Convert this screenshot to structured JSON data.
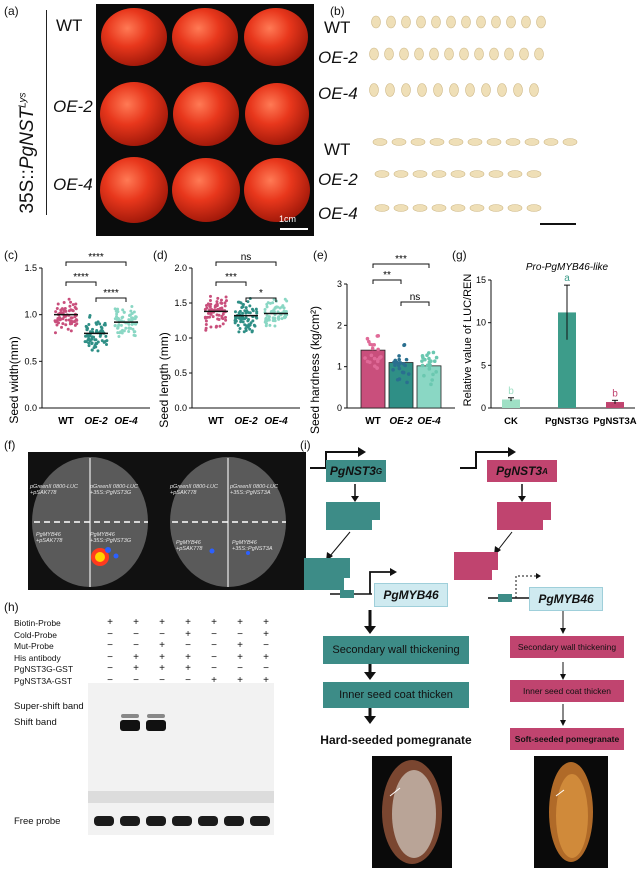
{
  "panel_a": {
    "label": "(a)",
    "construct_prefix": "35S::",
    "construct_gene": "PgNST",
    "construct_sup": "Lys",
    "rows": [
      "WT",
      "OE-2",
      "OE-4"
    ],
    "scale": "1cm"
  },
  "panel_b": {
    "label": "(b)",
    "rows": [
      "WT",
      "OE-2",
      "OE-4",
      "WT",
      "OE-2",
      "OE-4"
    ]
  },
  "panel_c": {
    "label": "(c)",
    "ylabel": "Seed width(mm)",
    "yticks": [
      "0.0",
      "0.5",
      "1.0",
      "1.5"
    ],
    "xticks": [
      "WT",
      "OE-2",
      "OE-4"
    ],
    "sig": [
      "****",
      "****",
      "****"
    ]
  },
  "panel_d": {
    "label": "(d)",
    "ylabel": "Seed length (mm)",
    "yticks": [
      "0.0",
      "0.5",
      "1.0",
      "1.5",
      "2.0"
    ],
    "xticks": [
      "WT",
      "OE-2",
      "OE-4"
    ],
    "sig": [
      "ns",
      "***",
      "*"
    ]
  },
  "panel_e": {
    "label": "(e)",
    "ylabel": "Seed hardness (kg/cm²)",
    "yticks": [
      "0",
      "1",
      "2",
      "3"
    ],
    "xticks": [
      "WT",
      "OE-2",
      "OE-4"
    ],
    "sig": [
      "***",
      "**",
      "ns"
    ]
  },
  "panel_g": {
    "label": "(g)",
    "title": "Pro-PgMYB46-like",
    "ylabel": "Relative value of LUC/REN",
    "yticks": [
      "0",
      "5",
      "10",
      "15"
    ],
    "xticks": [
      "CK",
      "PgNST3G",
      "PgNST3A"
    ],
    "letters": [
      "b",
      "a",
      "b"
    ]
  },
  "panel_f": {
    "label": "(f)",
    "left_leaf": {
      "tl": "pGreenII 0800-LUC\n+pSAK778",
      "tr": "pGreenII 0800-LUC\n+35S::PgNST3G",
      "bl": "PgMYB46\n+pSAK778",
      "br": "PgMYB46\n+35S::PgNST3G"
    },
    "right_leaf": {
      "tl": "pGreenII 0800-LUC\n+pSAK778",
      "tr": "pGreenII 0800-LUC\n+35S::PgNST3A",
      "bl": "PgMYB46\n+pSAK778",
      "br": "PgMYB46\n+35S::PgNST3A"
    }
  },
  "panel_h": {
    "label": "(h)",
    "rows": [
      {
        "name": "Biotin-Probe",
        "signs": [
          "+",
          "+",
          "+",
          "+",
          "+",
          "+",
          "+"
        ]
      },
      {
        "name": "Cold-Probe",
        "signs": [
          "−",
          "−",
          "−",
          "+",
          "−",
          "−",
          "+"
        ]
      },
      {
        "name": "Mut-Probe",
        "signs": [
          "−",
          "−",
          "+",
          "−",
          "−",
          "+",
          "−"
        ]
      },
      {
        "name": "His antibody",
        "signs": [
          "−",
          "+",
          "+",
          "+",
          "−",
          "+",
          "+"
        ]
      },
      {
        "name": "PgNST3G-GST",
        "signs": [
          "−",
          "+",
          "+",
          "+",
          "−",
          "−",
          "−"
        ]
      },
      {
        "name": "PgNST3A-GST",
        "signs": [
          "−",
          "−",
          "−",
          "−",
          "+",
          "+",
          "+"
        ]
      }
    ],
    "bands": [
      "Super-shift band",
      "Shift band",
      "Free probe"
    ]
  },
  "panel_i": {
    "label": "(i)",
    "left_gene": "PgNST3",
    "left_sup": "G",
    "right_gene": "PgNST3",
    "right_sup": "A",
    "target": "PgMYB46",
    "left_steps": [
      "Secondary wall thickening",
      "Inner seed coat thicken",
      "Hard-seeded pomegranate"
    ],
    "right_steps": [
      "Secondary wall thickening",
      "Inner seed coat thicken",
      "Soft-seeded pomegranate"
    ]
  },
  "colors": {
    "teal": "#3d8c87",
    "pink": "#c0446f",
    "light_blue": "#cfeaf0",
    "wt_dots": "#c94f7c",
    "oe2_dots": "#2f8f86",
    "oe4_dots": "#8ad7c4"
  },
  "chart_data": [
    {
      "type": "scatter",
      "panel": "(c)",
      "categories": [
        "WT",
        "OE-2",
        "OE-4"
      ],
      "values": [
        1.0,
        0.8,
        0.92
      ],
      "ylabel": "Seed width(mm)",
      "ylim": [
        0,
        1.5
      ]
    },
    {
      "type": "scatter",
      "panel": "(d)",
      "categories": [
        "WT",
        "OE-2",
        "OE-4"
      ],
      "values": [
        1.38,
        1.32,
        1.35
      ],
      "ylabel": "Seed length (mm)",
      "ylim": [
        0,
        2.0
      ]
    },
    {
      "type": "bar",
      "panel": "(e)",
      "categories": [
        "WT",
        "OE-2",
        "OE-4"
      ],
      "values": [
        1.4,
        1.1,
        1.02
      ],
      "ylabel": "Seed hardness (kg/cm²)",
      "ylim": [
        0,
        3
      ]
    },
    {
      "type": "bar",
      "panel": "(g)",
      "categories": [
        "CK",
        "PgNST3G",
        "PgNST3A"
      ],
      "values": [
        1.0,
        11.2,
        0.7
      ],
      "errors": [
        0.2,
        3.2,
        0.2
      ],
      "ylabel": "Relative value of LUC/REN",
      "ylim": [
        0,
        15
      ]
    }
  ]
}
